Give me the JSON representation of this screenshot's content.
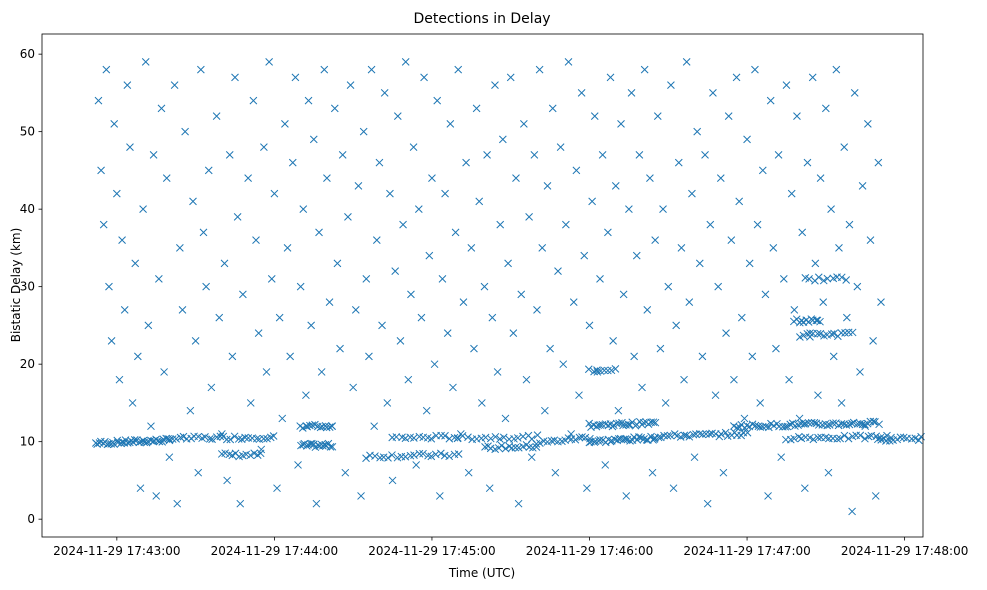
{
  "chart_data": {
    "type": "scatter",
    "title": "Detections in Delay",
    "xlabel": "Time (UTC)",
    "ylabel": "Bistatic Delay (km)",
    "x_units": "seconds after 2024-11-29 17:43:00 UTC",
    "xlim": [
      -28.5,
      307
    ],
    "ylim": [
      -2.3,
      62.6
    ],
    "x_ticks": [
      {
        "value": 0,
        "label": "2024-11-29 17:43:00"
      },
      {
        "value": 60,
        "label": "2024-11-29 17:44:00"
      },
      {
        "value": 120,
        "label": "2024-11-29 17:45:00"
      },
      {
        "value": 180,
        "label": "2024-11-29 17:46:00"
      },
      {
        "value": 240,
        "label": "2024-11-29 17:47:00"
      },
      {
        "value": 300,
        "label": "2024-11-29 17:48:00"
      }
    ],
    "y_ticks": [
      {
        "value": 0,
        "label": "0"
      },
      {
        "value": 10,
        "label": "10"
      },
      {
        "value": 20,
        "label": "20"
      },
      {
        "value": 30,
        "label": "30"
      },
      {
        "value": 40,
        "label": "40"
      },
      {
        "value": 50,
        "label": "50"
      },
      {
        "value": 60,
        "label": "60"
      }
    ],
    "grid": false,
    "marker": "x",
    "color": "#1f77b4",
    "tracks": [
      {
        "t0": -8,
        "t1": 20,
        "d0": 9.8,
        "d1": 10.2,
        "n": 40
      },
      {
        "t0": 20,
        "t1": 60,
        "d0": 10.4,
        "d1": 10.6,
        "n": 30
      },
      {
        "t0": 40,
        "t1": 55,
        "d0": 8.3,
        "d1": 8.3,
        "n": 12
      },
      {
        "t0": 70,
        "t1": 82,
        "d0": 9.5,
        "d1": 9.5,
        "n": 18
      },
      {
        "t0": 70,
        "t1": 82,
        "d0": 12,
        "d1": 12,
        "n": 14
      },
      {
        "t0": 95,
        "t1": 130,
        "d0": 8.1,
        "d1": 8.3,
        "n": 22
      },
      {
        "t0": 105,
        "t1": 130,
        "d0": 10.5,
        "d1": 10.6,
        "n": 16
      },
      {
        "t0": 130,
        "t1": 160,
        "d0": 10.5,
        "d1": 10.6,
        "n": 18
      },
      {
        "t0": 140,
        "t1": 160,
        "d0": 9.2,
        "d1": 9.4,
        "n": 16
      },
      {
        "t0": 160,
        "t1": 180,
        "d0": 9.8,
        "d1": 10.6,
        "n": 16
      },
      {
        "t0": 180,
        "t1": 205,
        "d0": 10,
        "d1": 10.5,
        "n": 30
      },
      {
        "t0": 180,
        "t1": 205,
        "d0": 12.1,
        "d1": 12.4,
        "n": 30
      },
      {
        "t0": 180,
        "t1": 190,
        "d0": 19.2,
        "d1": 19.4,
        "n": 8
      },
      {
        "t0": 205,
        "t1": 240,
        "d0": 10.7,
        "d1": 11,
        "n": 30
      },
      {
        "t0": 235,
        "t1": 290,
        "d0": 12,
        "d1": 12.4,
        "n": 55
      },
      {
        "t0": 255,
        "t1": 295,
        "d0": 10.5,
        "d1": 10.6,
        "n": 28
      },
      {
        "t0": 258,
        "t1": 268,
        "d0": 25.6,
        "d1": 25.6,
        "n": 12
      },
      {
        "t0": 260,
        "t1": 280,
        "d0": 23.7,
        "d1": 23.9,
        "n": 16
      },
      {
        "t0": 262,
        "t1": 278,
        "d0": 31,
        "d1": 31,
        "n": 10
      },
      {
        "t0": 290,
        "t1": 330,
        "d0": 10.3,
        "d1": 10.6,
        "n": 30
      }
    ],
    "points": [
      [
        -7,
        54
      ],
      [
        -6,
        45
      ],
      [
        -5,
        38
      ],
      [
        -4,
        58
      ],
      [
        -3,
        30
      ],
      [
        -2,
        23
      ],
      [
        -1,
        51
      ],
      [
        0,
        42
      ],
      [
        1,
        18
      ],
      [
        2,
        36
      ],
      [
        3,
        27
      ],
      [
        4,
        56
      ],
      [
        5,
        48
      ],
      [
        6,
        15
      ],
      [
        7,
        33
      ],
      [
        8,
        21
      ],
      [
        9,
        4
      ],
      [
        10,
        40
      ],
      [
        11,
        59
      ],
      [
        12,
        25
      ],
      [
        13,
        12
      ],
      [
        14,
        47
      ],
      [
        15,
        3
      ],
      [
        16,
        31
      ],
      [
        17,
        53
      ],
      [
        18,
        19
      ],
      [
        19,
        44
      ],
      [
        20,
        8
      ],
      [
        22,
        56
      ],
      [
        23,
        2
      ],
      [
        24,
        35
      ],
      [
        25,
        27
      ],
      [
        26,
        50
      ],
      [
        28,
        14
      ],
      [
        29,
        41
      ],
      [
        30,
        23
      ],
      [
        31,
        6
      ],
      [
        32,
        58
      ],
      [
        33,
        37
      ],
      [
        34,
        30
      ],
      [
        35,
        45
      ],
      [
        36,
        17
      ],
      [
        38,
        52
      ],
      [
        39,
        26
      ],
      [
        40,
        11
      ],
      [
        41,
        33
      ],
      [
        42,
        5
      ],
      [
        43,
        47
      ],
      [
        44,
        21
      ],
      [
        45,
        57
      ],
      [
        46,
        39
      ],
      [
        47,
        2
      ],
      [
        48,
        29
      ],
      [
        50,
        44
      ],
      [
        51,
        15
      ],
      [
        52,
        54
      ],
      [
        53,
        36
      ],
      [
        54,
        24
      ],
      [
        55,
        9
      ],
      [
        56,
        48
      ],
      [
        57,
        19
      ],
      [
        58,
        59
      ],
      [
        59,
        31
      ],
      [
        60,
        42
      ],
      [
        61,
        4
      ],
      [
        62,
        26
      ],
      [
        63,
        13
      ],
      [
        64,
        51
      ],
      [
        65,
        35
      ],
      [
        66,
        21
      ],
      [
        67,
        46
      ],
      [
        68,
        57
      ],
      [
        69,
        7
      ],
      [
        70,
        30
      ],
      [
        71,
        40
      ],
      [
        72,
        16
      ],
      [
        73,
        54
      ],
      [
        74,
        25
      ],
      [
        75,
        49
      ],
      [
        76,
        2
      ],
      [
        77,
        37
      ],
      [
        78,
        19
      ],
      [
        79,
        58
      ],
      [
        80,
        44
      ],
      [
        81,
        28
      ],
      [
        82,
        12
      ],
      [
        83,
        53
      ],
      [
        84,
        33
      ],
      [
        85,
        22
      ],
      [
        86,
        47
      ],
      [
        87,
        6
      ],
      [
        88,
        39
      ],
      [
        89,
        56
      ],
      [
        90,
        17
      ],
      [
        91,
        27
      ],
      [
        92,
        43
      ],
      [
        93,
        3
      ],
      [
        94,
        50
      ],
      [
        95,
        31
      ],
      [
        96,
        21
      ],
      [
        97,
        58
      ],
      [
        98,
        12
      ],
      [
        99,
        36
      ],
      [
        100,
        46
      ],
      [
        101,
        25
      ],
      [
        102,
        55
      ],
      [
        103,
        15
      ],
      [
        104,
        42
      ],
      [
        105,
        5
      ],
      [
        106,
        32
      ],
      [
        107,
        52
      ],
      [
        108,
        23
      ],
      [
        109,
        38
      ],
      [
        110,
        59
      ],
      [
        111,
        18
      ],
      [
        112,
        29
      ],
      [
        113,
        48
      ],
      [
        114,
        7
      ],
      [
        115,
        40
      ],
      [
        116,
        26
      ],
      [
        117,
        57
      ],
      [
        118,
        14
      ],
      [
        119,
        34
      ],
      [
        120,
        44
      ],
      [
        121,
        20
      ],
      [
        122,
        54
      ],
      [
        123,
        3
      ],
      [
        124,
        31
      ],
      [
        125,
        42
      ],
      [
        126,
        24
      ],
      [
        127,
        51
      ],
      [
        128,
        17
      ],
      [
        129,
        37
      ],
      [
        130,
        58
      ],
      [
        131,
        11
      ],
      [
        132,
        28
      ],
      [
        133,
        46
      ],
      [
        134,
        6
      ],
      [
        135,
        35
      ],
      [
        136,
        22
      ],
      [
        137,
        53
      ],
      [
        138,
        41
      ],
      [
        139,
        15
      ],
      [
        140,
        30
      ],
      [
        141,
        47
      ],
      [
        142,
        4
      ],
      [
        143,
        26
      ],
      [
        144,
        56
      ],
      [
        145,
        19
      ],
      [
        146,
        38
      ],
      [
        147,
        49
      ],
      [
        148,
        13
      ],
      [
        149,
        33
      ],
      [
        150,
        57
      ],
      [
        151,
        24
      ],
      [
        152,
        44
      ],
      [
        153,
        2
      ],
      [
        154,
        29
      ],
      [
        155,
        51
      ],
      [
        156,
        18
      ],
      [
        157,
        39
      ],
      [
        158,
        8
      ],
      [
        159,
        47
      ],
      [
        160,
        27
      ],
      [
        161,
        58
      ],
      [
        162,
        35
      ],
      [
        163,
        14
      ],
      [
        164,
        43
      ],
      [
        165,
        22
      ],
      [
        166,
        53
      ],
      [
        167,
        6
      ],
      [
        168,
        32
      ],
      [
        169,
        48
      ],
      [
        170,
        20
      ],
      [
        171,
        38
      ],
      [
        172,
        59
      ],
      [
        173,
        11
      ],
      [
        174,
        28
      ],
      [
        175,
        45
      ],
      [
        176,
        16
      ],
      [
        177,
        55
      ],
      [
        178,
        34
      ],
      [
        179,
        4
      ],
      [
        180,
        25
      ],
      [
        181,
        41
      ],
      [
        182,
        52
      ],
      [
        183,
        19
      ],
      [
        184,
        31
      ],
      [
        185,
        47
      ],
      [
        186,
        7
      ],
      [
        187,
        37
      ],
      [
        188,
        57
      ],
      [
        189,
        23
      ],
      [
        190,
        43
      ],
      [
        191,
        14
      ],
      [
        192,
        51
      ],
      [
        193,
        29
      ],
      [
        194,
        3
      ],
      [
        195,
        40
      ],
      [
        196,
        55
      ],
      [
        197,
        21
      ],
      [
        198,
        34
      ],
      [
        199,
        47
      ],
      [
        200,
        17
      ],
      [
        201,
        58
      ],
      [
        202,
        27
      ],
      [
        203,
        44
      ],
      [
        204,
        6
      ],
      [
        205,
        36
      ],
      [
        206,
        52
      ],
      [
        207,
        22
      ],
      [
        208,
        40
      ],
      [
        209,
        15
      ],
      [
        210,
        30
      ],
      [
        211,
        56
      ],
      [
        212,
        4
      ],
      [
        213,
        25
      ],
      [
        214,
        46
      ],
      [
        215,
        35
      ],
      [
        216,
        18
      ],
      [
        217,
        59
      ],
      [
        218,
        28
      ],
      [
        219,
        42
      ],
      [
        220,
        8
      ],
      [
        221,
        50
      ],
      [
        222,
        33
      ],
      [
        223,
        21
      ],
      [
        224,
        47
      ],
      [
        225,
        2
      ],
      [
        226,
        38
      ],
      [
        227,
        55
      ],
      [
        228,
        16
      ],
      [
        229,
        30
      ],
      [
        230,
        44
      ],
      [
        231,
        6
      ],
      [
        232,
        24
      ],
      [
        233,
        52
      ],
      [
        234,
        36
      ],
      [
        235,
        18
      ],
      [
        236,
        57
      ],
      [
        237,
        41
      ],
      [
        238,
        26
      ],
      [
        239,
        13
      ],
      [
        240,
        49
      ],
      [
        241,
        33
      ],
      [
        242,
        21
      ],
      [
        243,
        58
      ],
      [
        244,
        38
      ],
      [
        245,
        15
      ],
      [
        246,
        45
      ],
      [
        247,
        29
      ],
      [
        248,
        3
      ],
      [
        249,
        54
      ],
      [
        250,
        35
      ],
      [
        251,
        22
      ],
      [
        252,
        47
      ],
      [
        253,
        8
      ],
      [
        254,
        31
      ],
      [
        255,
        56
      ],
      [
        256,
        18
      ],
      [
        257,
        42
      ],
      [
        258,
        27
      ],
      [
        259,
        52
      ],
      [
        260,
        13
      ],
      [
        261,
        37
      ],
      [
        262,
        4
      ],
      [
        263,
        46
      ],
      [
        264,
        24
      ],
      [
        265,
        57
      ],
      [
        266,
        33
      ],
      [
        267,
        16
      ],
      [
        268,
        44
      ],
      [
        269,
        28
      ],
      [
        270,
        53
      ],
      [
        271,
        6
      ],
      [
        272,
        40
      ],
      [
        273,
        21
      ],
      [
        274,
        58
      ],
      [
        275,
        35
      ],
      [
        276,
        15
      ],
      [
        277,
        48
      ],
      [
        278,
        26
      ],
      [
        279,
        38
      ],
      [
        280,
        1
      ],
      [
        281,
        55
      ],
      [
        282,
        30
      ],
      [
        283,
        19
      ],
      [
        284,
        43
      ],
      [
        285,
        12
      ],
      [
        286,
        51
      ],
      [
        287,
        36
      ],
      [
        288,
        23
      ],
      [
        289,
        3
      ],
      [
        290,
        46
      ],
      [
        291,
        28
      ]
    ]
  }
}
